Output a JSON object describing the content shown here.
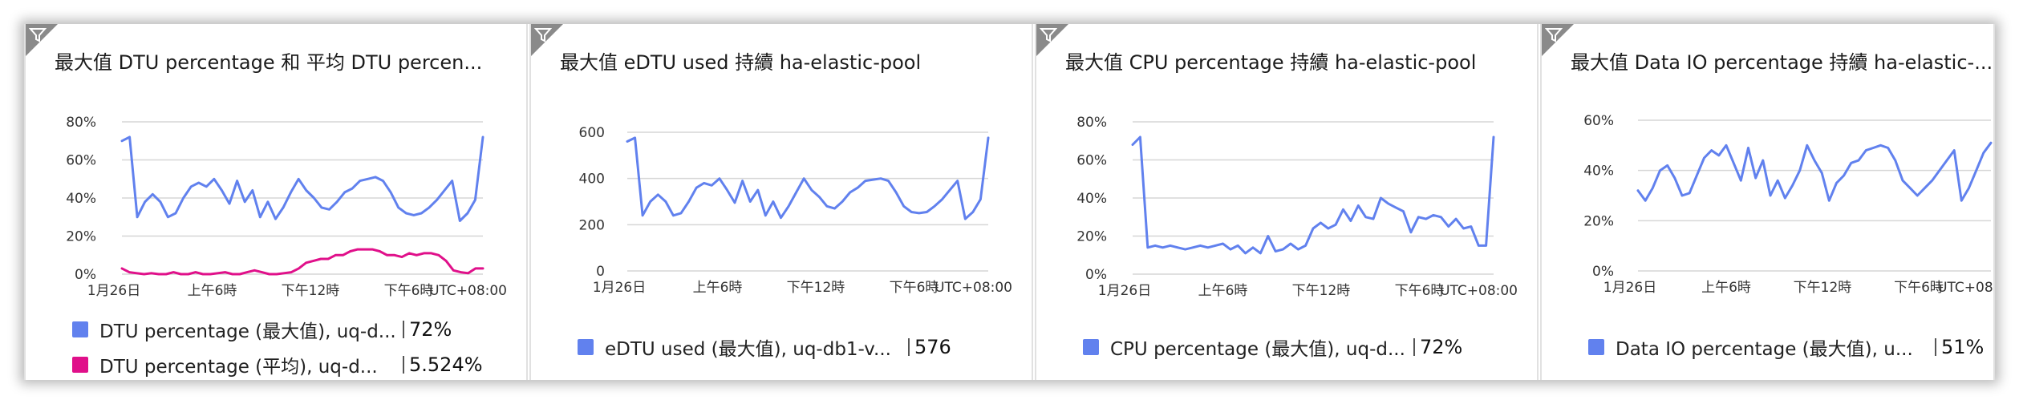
{
  "colors": {
    "series_blue": "#6181ee",
    "series_pink": "#e0108a",
    "grid": "#d6d6d6"
  },
  "tiles": [
    {
      "title": "最大值 DTU percentage 和 平均 DTU percen...",
      "filter_icon": "funnel-icon",
      "legend": [
        {
          "label": "DTU percentage (最大值), uq-d...",
          "value": "72%",
          "color": "#6181ee"
        },
        {
          "label": "DTU percentage (平均), uq-d...",
          "value": "5.524%",
          "color": "#e0108a"
        }
      ]
    },
    {
      "title": "最大值 eDTU used 持續 ha-elastic-pool",
      "filter_icon": "funnel-icon",
      "legend": [
        {
          "label": "eDTU used (最大值), uq-db1-v...",
          "value": "576",
          "color": "#6181ee"
        }
      ]
    },
    {
      "title": "最大值 CPU percentage 持續 ha-elastic-pool",
      "filter_icon": "funnel-icon",
      "legend": [
        {
          "label": "CPU percentage (最大值), uq-d...",
          "value": "72%",
          "color": "#6181ee"
        }
      ]
    },
    {
      "title": "最大值 Data IO percentage 持續 ha-elastic-...",
      "filter_icon": "funnel-icon",
      "legend": [
        {
          "label": "Data IO percentage (最大值), u...",
          "value": "51%",
          "color": "#6181ee"
        }
      ]
    }
  ],
  "chart_data": [
    {
      "type": "line",
      "x_tick_labels": [
        "1月26日",
        "上午6時",
        "下午12時",
        "下午6時",
        "UTC+08:00"
      ],
      "y_tick_labels": [
        "0%",
        "20%",
        "40%",
        "60%",
        "80%"
      ],
      "y_ticks": [
        0,
        20,
        40,
        60,
        80
      ],
      "ylim": [
        0,
        80
      ],
      "grid": true,
      "series": [
        {
          "name": "DTU percentage (最大值), uq-d...",
          "color": "#6181ee",
          "values": [
            70,
            72,
            30,
            38,
            42,
            38,
            30,
            32,
            40,
            46,
            48,
            46,
            50,
            44,
            37,
            49,
            38,
            44,
            30,
            38,
            29,
            35,
            43,
            50,
            44,
            40,
            35,
            34,
            38,
            43,
            45,
            49,
            50,
            51,
            49,
            43,
            35,
            32,
            31,
            32,
            35,
            39,
            44,
            49,
            28,
            32,
            39,
            72
          ]
        },
        {
          "name": "DTU percentage (平均), uq-d...",
          "color": "#e0108a",
          "values": [
            3,
            1,
            0.5,
            0,
            0.5,
            0,
            0,
            1,
            0,
            0,
            1,
            0,
            0,
            0.5,
            1,
            0,
            0,
            1,
            2,
            1,
            0,
            0,
            0.5,
            1,
            3,
            6,
            7,
            8,
            8,
            10,
            10,
            12,
            13,
            13,
            13,
            12,
            10,
            10,
            9,
            11,
            10,
            11,
            11,
            10,
            7,
            2,
            1,
            0.5,
            3,
            3
          ]
        }
      ]
    },
    {
      "type": "line",
      "x_tick_labels": [
        "1月26日",
        "上午6時",
        "下午12時",
        "下午6時",
        "UTC+08:00"
      ],
      "y_tick_labels": [
        "0",
        "200",
        "400",
        "600"
      ],
      "y_ticks": [
        0,
        200,
        400,
        600
      ],
      "ylim": [
        0,
        600
      ],
      "grid": true,
      "series": [
        {
          "name": "eDTU used (最大值), uq-db1-v...",
          "color": "#6181ee",
          "values": [
            560,
            576,
            240,
            300,
            330,
            300,
            240,
            250,
            300,
            360,
            380,
            370,
            400,
            350,
            295,
            390,
            300,
            350,
            240,
            300,
            230,
            280,
            340,
            400,
            350,
            320,
            280,
            270,
            300,
            340,
            360,
            390,
            395,
            400,
            390,
            340,
            280,
            255,
            250,
            255,
            280,
            310,
            350,
            390,
            225,
            255,
            310,
            576
          ]
        }
      ]
    },
    {
      "type": "line",
      "x_tick_labels": [
        "1月26日",
        "上午6時",
        "下午12時",
        "下午6時",
        "UTC+08:00"
      ],
      "y_tick_labels": [
        "0%",
        "20%",
        "40%",
        "60%",
        "80%"
      ],
      "y_ticks": [
        0,
        20,
        40,
        60,
        80
      ],
      "ylim": [
        0,
        80
      ],
      "grid": true,
      "series": [
        {
          "name": "CPU percentage (最大值), uq-d...",
          "color": "#6181ee",
          "values": [
            68,
            72,
            14,
            15,
            14,
            15,
            14,
            13,
            14,
            15,
            14,
            15,
            16,
            13,
            15,
            11,
            14,
            11,
            20,
            12,
            13,
            16,
            13,
            15,
            24,
            27,
            24,
            26,
            34,
            28,
            36,
            30,
            29,
            40,
            37,
            35,
            33,
            22,
            30,
            29,
            31,
            30,
            25,
            29,
            24,
            25,
            15,
            15,
            72
          ]
        }
      ]
    },
    {
      "type": "line",
      "x_tick_labels": [
        "1月26日",
        "上午6時",
        "下午12時",
        "下午6時",
        "UTC+08:00"
      ],
      "y_tick_labels": [
        "0%",
        "20%",
        "40%",
        "60%"
      ],
      "y_ticks": [
        0,
        20,
        40,
        60
      ],
      "ylim": [
        0,
        60
      ],
      "grid": true,
      "series": [
        {
          "name": "Data IO percentage (最大值), u...",
          "color": "#6181ee",
          "values": [
            32,
            28,
            33,
            40,
            42,
            37,
            30,
            31,
            38,
            45,
            48,
            46,
            50,
            43,
            36,
            49,
            37,
            44,
            30,
            36,
            29,
            34,
            40,
            50,
            44,
            39,
            28,
            35,
            38,
            43,
            44,
            48,
            49,
            50,
            49,
            44,
            36,
            33,
            30,
            33,
            36,
            40,
            44,
            48,
            28,
            33,
            40,
            47,
            51
          ]
        }
      ]
    }
  ]
}
